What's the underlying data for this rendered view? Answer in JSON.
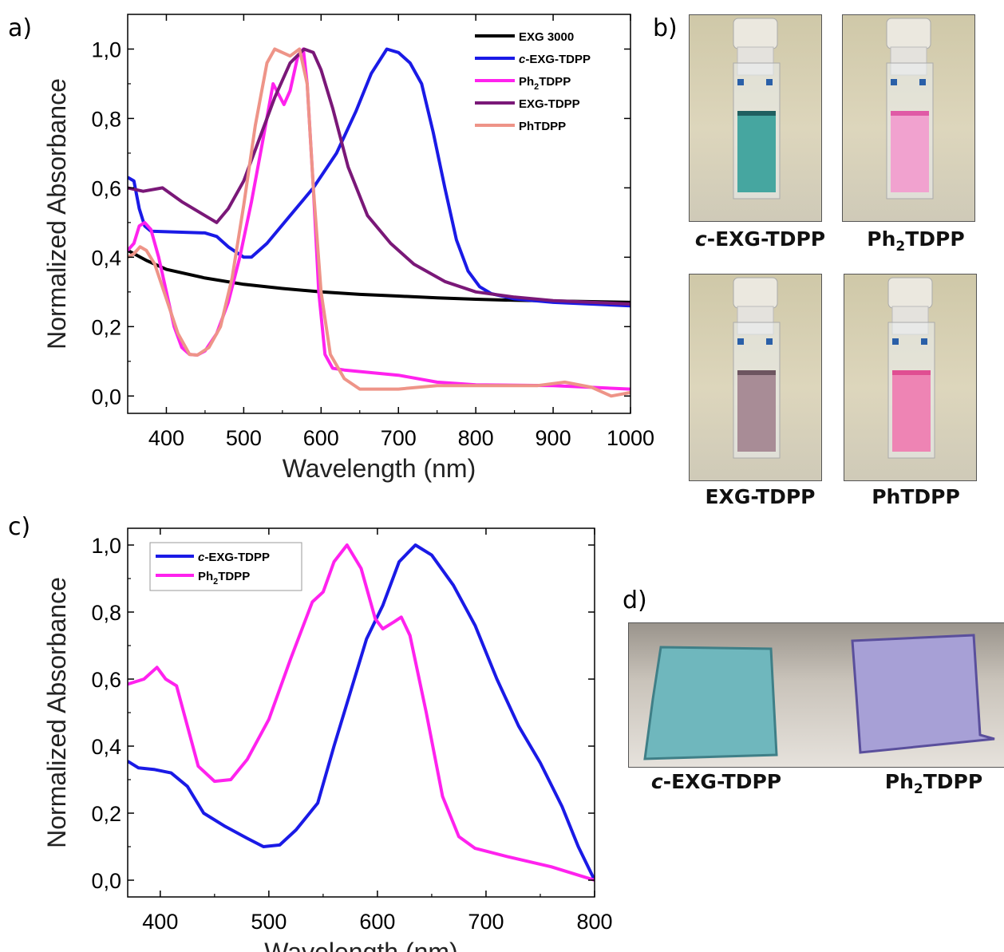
{
  "panels": {
    "a": "a)",
    "b": "b)",
    "c": "c)",
    "d": "d)"
  },
  "chart_data": [
    {
      "type": "line",
      "panel": "a",
      "xlabel": "Wavelength (nm)",
      "ylabel": "Normalized Absorbance",
      "xlim": [
        350,
        1000
      ],
      "ylim": [
        -0.05,
        1.1
      ],
      "xticks": [
        "400",
        "500",
        "600",
        "700",
        "800",
        "900",
        "1000"
      ],
      "yticks": [
        "0,0",
        "0,2",
        "0,4",
        "0,6",
        "0,8",
        "1,0"
      ],
      "legend_position": "top-right",
      "series": [
        {
          "name": "EXG 3000",
          "color": "#000000",
          "points": [
            [
              350,
              0.42
            ],
            [
              375,
              0.39
            ],
            [
              400,
              0.365
            ],
            [
              450,
              0.34
            ],
            [
              500,
              0.322
            ],
            [
              550,
              0.31
            ],
            [
              600,
              0.3
            ],
            [
              650,
              0.293
            ],
            [
              700,
              0.288
            ],
            [
              750,
              0.283
            ],
            [
              800,
              0.279
            ],
            [
              850,
              0.276
            ],
            [
              900,
              0.274
            ],
            [
              950,
              0.272
            ],
            [
              1000,
              0.27
            ]
          ]
        },
        {
          "name": "c-EXG-TDPP",
          "color": "#1a1ae6",
          "points": [
            [
              350,
              0.63
            ],
            [
              358,
              0.62
            ],
            [
              365,
              0.54
            ],
            [
              372,
              0.49
            ],
            [
              380,
              0.475
            ],
            [
              450,
              0.47
            ],
            [
              465,
              0.46
            ],
            [
              480,
              0.43
            ],
            [
              500,
              0.4
            ],
            [
              510,
              0.4
            ],
            [
              530,
              0.44
            ],
            [
              560,
              0.52
            ],
            [
              590,
              0.6
            ],
            [
              620,
              0.7
            ],
            [
              645,
              0.82
            ],
            [
              665,
              0.93
            ],
            [
              685,
              1.0
            ],
            [
              700,
              0.99
            ],
            [
              715,
              0.96
            ],
            [
              730,
              0.9
            ],
            [
              745,
              0.76
            ],
            [
              760,
              0.6
            ],
            [
              775,
              0.45
            ],
            [
              790,
              0.36
            ],
            [
              805,
              0.315
            ],
            [
              820,
              0.295
            ],
            [
              850,
              0.28
            ],
            [
              900,
              0.27
            ],
            [
              1000,
              0.26
            ]
          ]
        },
        {
          "name": "Ph2TDPP",
          "color": "#ff22ee",
          "points": [
            [
              350,
              0.42
            ],
            [
              358,
              0.44
            ],
            [
              365,
              0.49
            ],
            [
              372,
              0.5
            ],
            [
              380,
              0.48
            ],
            [
              390,
              0.4
            ],
            [
              400,
              0.3
            ],
            [
              410,
              0.2
            ],
            [
              420,
              0.14
            ],
            [
              430,
              0.12
            ],
            [
              440,
              0.118
            ],
            [
              450,
              0.13
            ],
            [
              465,
              0.18
            ],
            [
              480,
              0.27
            ],
            [
              495,
              0.4
            ],
            [
              510,
              0.56
            ],
            [
              525,
              0.74
            ],
            [
              538,
              0.9
            ],
            [
              545,
              0.87
            ],
            [
              552,
              0.84
            ],
            [
              560,
              0.88
            ],
            [
              570,
              0.98
            ],
            [
              577,
              1.0
            ],
            [
              582,
              0.9
            ],
            [
              590,
              0.6
            ],
            [
              597,
              0.3
            ],
            [
              605,
              0.12
            ],
            [
              615,
              0.08
            ],
            [
              630,
              0.075
            ],
            [
              700,
              0.06
            ],
            [
              750,
              0.04
            ],
            [
              800,
              0.032
            ],
            [
              900,
              0.03
            ],
            [
              950,
              0.025
            ],
            [
              1000,
              0.02
            ]
          ]
        },
        {
          "name": "EXG-TDPP",
          "color": "#7a1878",
          "points": [
            [
              350,
              0.6
            ],
            [
              370,
              0.59
            ],
            [
              395,
              0.6
            ],
            [
              420,
              0.56
            ],
            [
              450,
              0.52
            ],
            [
              465,
              0.5
            ],
            [
              480,
              0.54
            ],
            [
              500,
              0.62
            ],
            [
              520,
              0.74
            ],
            [
              540,
              0.86
            ],
            [
              560,
              0.96
            ],
            [
              578,
              1.0
            ],
            [
              590,
              0.99
            ],
            [
              600,
              0.94
            ],
            [
              615,
              0.83
            ],
            [
              635,
              0.66
            ],
            [
              660,
              0.52
            ],
            [
              690,
              0.44
            ],
            [
              720,
              0.38
            ],
            [
              760,
              0.33
            ],
            [
              800,
              0.3
            ],
            [
              850,
              0.285
            ],
            [
              900,
              0.275
            ],
            [
              1000,
              0.265
            ]
          ]
        },
        {
          "name": "PhTDPP",
          "color": "#ee9488",
          "points": [
            [
              350,
              0.4
            ],
            [
              358,
              0.41
            ],
            [
              366,
              0.43
            ],
            [
              374,
              0.42
            ],
            [
              385,
              0.38
            ],
            [
              400,
              0.28
            ],
            [
              415,
              0.18
            ],
            [
              430,
              0.12
            ],
            [
              440,
              0.118
            ],
            [
              455,
              0.14
            ],
            [
              470,
              0.2
            ],
            [
              485,
              0.34
            ],
            [
              500,
              0.55
            ],
            [
              515,
              0.78
            ],
            [
              530,
              0.96
            ],
            [
              540,
              1.0
            ],
            [
              550,
              0.99
            ],
            [
              560,
              0.98
            ],
            [
              572,
              1.0
            ],
            [
              582,
              0.9
            ],
            [
              590,
              0.6
            ],
            [
              600,
              0.3
            ],
            [
              612,
              0.12
            ],
            [
              630,
              0.05
            ],
            [
              650,
              0.02
            ],
            [
              700,
              0.02
            ],
            [
              750,
              0.03
            ],
            [
              800,
              0.03
            ],
            [
              880,
              0.03
            ],
            [
              915,
              0.04
            ],
            [
              950,
              0.025
            ],
            [
              975,
              0.0
            ],
            [
              1000,
              0.01
            ]
          ]
        }
      ]
    },
    {
      "type": "line",
      "panel": "c",
      "xlabel": "Wavelength (nm)",
      "ylabel": "Normalized Absorbance",
      "xlim": [
        370,
        800
      ],
      "ylim": [
        -0.05,
        1.05
      ],
      "xticks": [
        "400",
        "500",
        "600",
        "700",
        "800"
      ],
      "yticks": [
        "0,0",
        "0,2",
        "0,4",
        "0,6",
        "0,8",
        "1,0"
      ],
      "legend_position": "top-left",
      "series": [
        {
          "name": "c-EXG-TDPP",
          "color": "#1a1ae6",
          "points": [
            [
              370,
              0.355
            ],
            [
              380,
              0.335
            ],
            [
              395,
              0.33
            ],
            [
              410,
              0.32
            ],
            [
              425,
              0.28
            ],
            [
              440,
              0.2
            ],
            [
              460,
              0.16
            ],
            [
              480,
              0.125
            ],
            [
              495,
              0.1
            ],
            [
              510,
              0.105
            ],
            [
              525,
              0.15
            ],
            [
              540,
              0.21
            ],
            [
              545,
              0.23
            ],
            [
              560,
              0.4
            ],
            [
              575,
              0.56
            ],
            [
              590,
              0.72
            ],
            [
              605,
              0.82
            ],
            [
              620,
              0.95
            ],
            [
              635,
              1.0
            ],
            [
              650,
              0.97
            ],
            [
              670,
              0.88
            ],
            [
              690,
              0.76
            ],
            [
              710,
              0.6
            ],
            [
              730,
              0.46
            ],
            [
              750,
              0.35
            ],
            [
              770,
              0.22
            ],
            [
              785,
              0.1
            ],
            [
              800,
              0.0
            ]
          ]
        },
        {
          "name": "Ph2TDPP",
          "color": "#ff22ee",
          "points": [
            [
              370,
              0.585
            ],
            [
              385,
              0.6
            ],
            [
              397,
              0.635
            ],
            [
              405,
              0.6
            ],
            [
              415,
              0.58
            ],
            [
              425,
              0.46
            ],
            [
              435,
              0.34
            ],
            [
              450,
              0.295
            ],
            [
              465,
              0.3
            ],
            [
              480,
              0.36
            ],
            [
              500,
              0.48
            ],
            [
              520,
              0.66
            ],
            [
              540,
              0.83
            ],
            [
              550,
              0.86
            ],
            [
              560,
              0.95
            ],
            [
              572,
              1.0
            ],
            [
              585,
              0.93
            ],
            [
              598,
              0.78
            ],
            [
              605,
              0.75
            ],
            [
              615,
              0.77
            ],
            [
              622,
              0.785
            ],
            [
              630,
              0.73
            ],
            [
              645,
              0.5
            ],
            [
              660,
              0.25
            ],
            [
              675,
              0.13
            ],
            [
              690,
              0.095
            ],
            [
              720,
              0.07
            ],
            [
              760,
              0.04
            ],
            [
              800,
              0.0
            ]
          ]
        }
      ]
    }
  ],
  "photos_b": [
    {
      "label_prefix": "c",
      "label_main": "-EXG-TDPP",
      "liquid_color": "#46a6a0",
      "liquid_top": "#1f5f60"
    },
    {
      "label_prefix": "",
      "label_main": "Ph",
      "label_sub": "2",
      "label_rest": "TDPP",
      "liquid_color": "#f1a2cf",
      "liquid_top": "#e05aa6"
    },
    {
      "label_prefix": "",
      "label_main": "EXG-TDPP",
      "liquid_color": "#a88c96",
      "liquid_top": "#6d5560"
    },
    {
      "label_prefix": "",
      "label_main": "PhTDPP",
      "liquid_color": "#ee84b4",
      "liquid_top": "#e04e92"
    }
  ],
  "photos_d": {
    "left": {
      "label_prefix": "c",
      "label_main": "-EXG-TDPP",
      "color": "#6fb7bd"
    },
    "right": {
      "label_main": "Ph",
      "label_sub": "2",
      "label_rest": "TDPP",
      "color": "#a7a0d6"
    }
  }
}
